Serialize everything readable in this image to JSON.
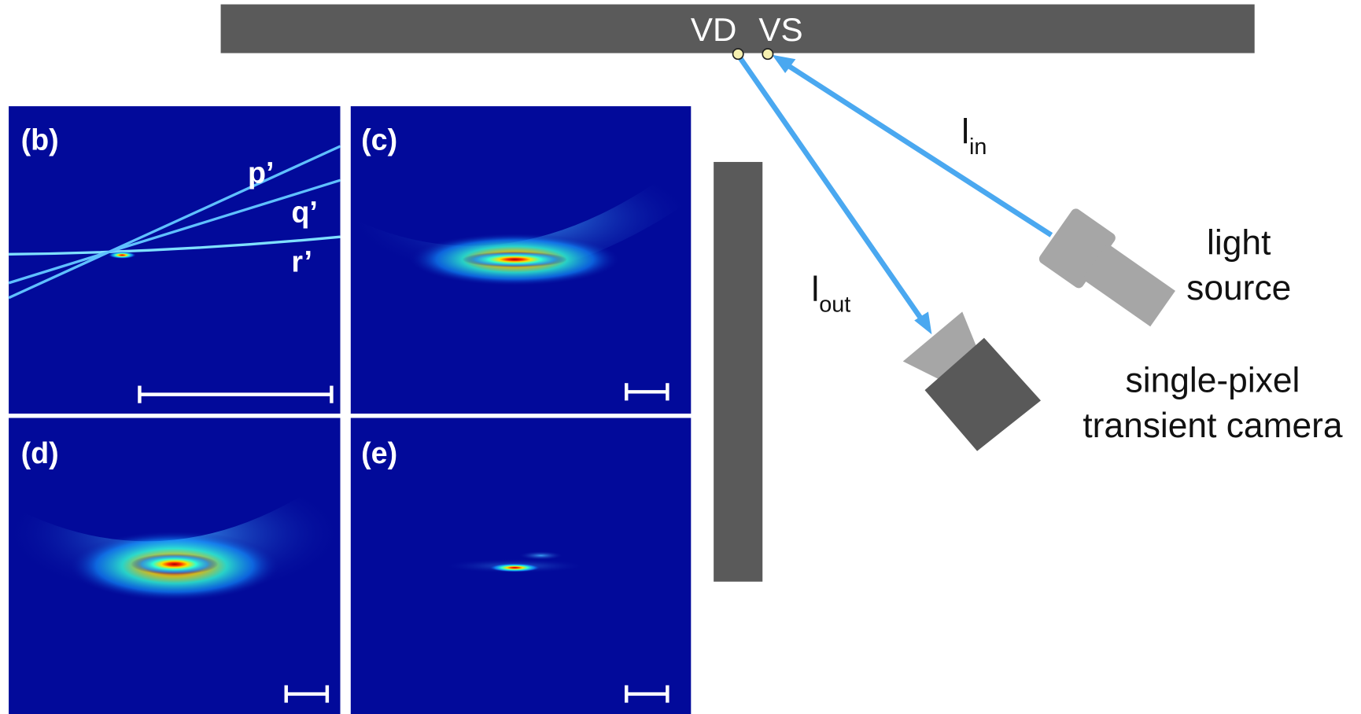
{
  "wall_labels": {
    "vd": "VD",
    "vs": "VS"
  },
  "rays": {
    "in": {
      "base": "l",
      "sub": "in"
    },
    "out": {
      "base": "l",
      "sub": "out"
    }
  },
  "light_source": [
    "light",
    "source"
  ],
  "camera": [
    "single-pixel",
    "transient camera"
  ],
  "panels": [
    {
      "label": "(b)"
    },
    {
      "label": "(c)"
    },
    {
      "label": "(d)"
    },
    {
      "label": "(e)"
    }
  ],
  "curve_labels": [
    "p’",
    "q’",
    "r’"
  ]
}
